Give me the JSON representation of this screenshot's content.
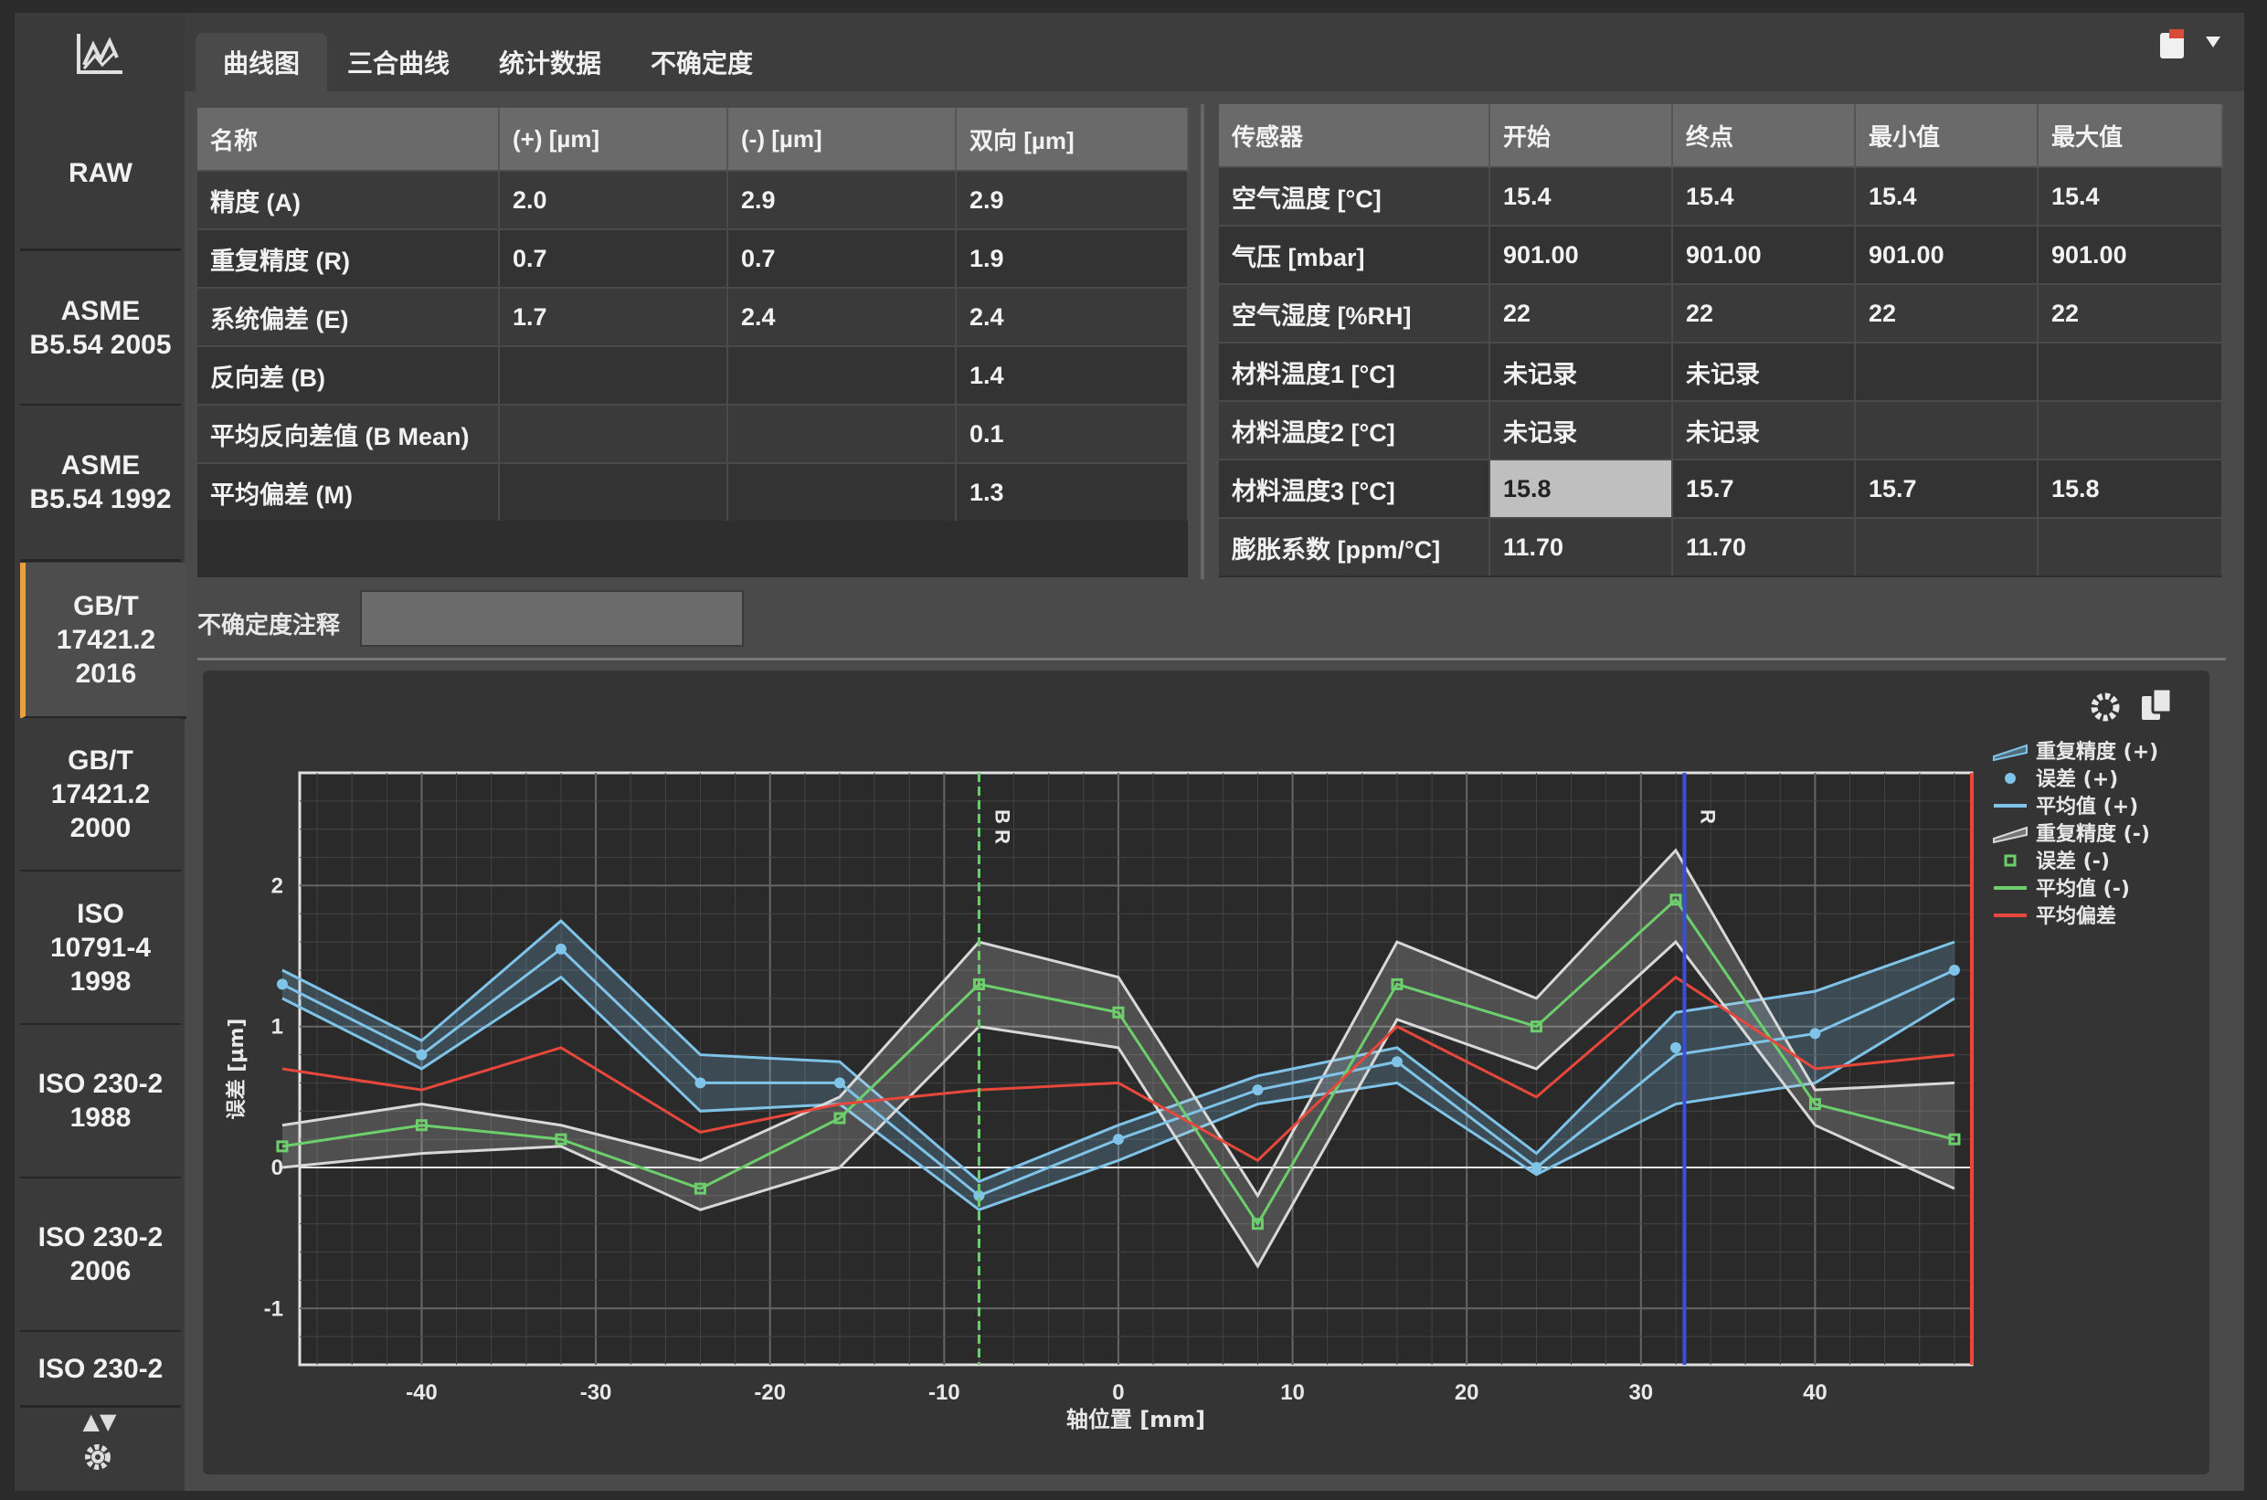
{
  "tabs": [
    {
      "label": "曲线图",
      "active": true
    },
    {
      "label": "三合曲线",
      "active": false
    },
    {
      "label": "统计数据",
      "active": false
    },
    {
      "label": "不确定度",
      "active": false
    }
  ],
  "sidebar": {
    "standards": [
      {
        "label": "RAW",
        "active": false
      },
      {
        "label": "ASME\nB5.54 2005",
        "active": false
      },
      {
        "label": "ASME\nB5.54 1992",
        "active": false
      },
      {
        "label": "GB/T\n17421.2\n2016",
        "active": true
      },
      {
        "label": "GB/T\n17421.2\n2000",
        "active": false
      },
      {
        "label": "ISO\n10791-4\n1998",
        "active": false
      },
      {
        "label": "ISO 230-2\n1988",
        "active": false
      },
      {
        "label": "ISO 230-2\n2006",
        "active": false
      },
      {
        "label": "ISO 230-2",
        "active": false
      }
    ],
    "scroll_arrows": "▲▼"
  },
  "results_table": {
    "headers": [
      "名称",
      "(+) [µm]",
      "(-) [µm]",
      "双向 [µm]"
    ],
    "rows": [
      [
        "精度 (A)",
        "2.0",
        "2.9",
        "2.9"
      ],
      [
        "重复精度 (R)",
        "0.7",
        "0.7",
        "1.9"
      ],
      [
        "系统偏差 (E)",
        "1.7",
        "2.4",
        "2.4"
      ],
      [
        "反向差 (B)",
        "",
        "",
        "1.4"
      ],
      [
        "平均反向差值 (B Mean)",
        "",
        "",
        "0.1"
      ],
      [
        "平均偏差 (M)",
        "",
        "",
        "1.3"
      ]
    ]
  },
  "sensor_table": {
    "headers": [
      "传感器",
      "开始",
      "终点",
      "最小值",
      "最大值"
    ],
    "rows": [
      [
        "空气温度 [°C]",
        "15.4",
        "15.4",
        "15.4",
        "15.4"
      ],
      [
        "气压 [mbar]",
        "901.00",
        "901.00",
        "901.00",
        "901.00"
      ],
      [
        "空气湿度 [%RH]",
        "22",
        "22",
        "22",
        "22"
      ],
      [
        "材料温度1 [°C]",
        "未记录",
        "未记录",
        "",
        ""
      ],
      [
        "材料温度2 [°C]",
        "未记录",
        "未记录",
        "",
        ""
      ],
      [
        "材料温度3 [°C]",
        "15.8",
        "15.7",
        "15.7",
        "15.8"
      ],
      [
        "膨胀系数 [ppm/°C]",
        "11.70",
        "11.70",
        "",
        ""
      ]
    ],
    "selected_cell": "15.8"
  },
  "uncertainty_note": {
    "label": "不确定度注释",
    "value": ""
  },
  "chart_data": {
    "type": "line",
    "xlabel": "轴位置 [mm]",
    "ylabel": "误差 [µm]",
    "xlim": [
      -47,
      49
    ],
    "ylim": [
      -1.4,
      2.8
    ],
    "xticks": [
      -40,
      -30,
      -20,
      -10,
      0,
      10,
      20,
      30,
      40
    ],
    "yticks": [
      -1,
      0,
      1,
      2
    ],
    "x": [
      -48,
      -40,
      -32,
      -24,
      -16,
      -8,
      0,
      8,
      16,
      24,
      32,
      40,
      48
    ],
    "series": [
      {
        "name": "重复精度 (+)",
        "kind": "band",
        "color": "#7fc3e8",
        "upper": [
          1.4,
          0.9,
          1.75,
          0.8,
          0.75,
          -0.1,
          0.3,
          0.65,
          0.85,
          0.1,
          1.1,
          1.25,
          1.6
        ],
        "lower": [
          1.2,
          0.7,
          1.35,
          0.4,
          0.45,
          -0.3,
          0.05,
          0.45,
          0.6,
          -0.05,
          0.45,
          0.6,
          1.2
        ]
      },
      {
        "name": "误差 (+)",
        "kind": "points",
        "color": "#7fc3e8",
        "values": [
          1.3,
          0.8,
          1.55,
          0.6,
          0.6,
          -0.2,
          0.2,
          0.55,
          0.75,
          0.0,
          0.85,
          0.95,
          1.4
        ]
      },
      {
        "name": "平均值 (+)",
        "kind": "line",
        "color": "#7fc3e8",
        "values": [
          1.3,
          0.8,
          1.55,
          0.6,
          0.6,
          -0.2,
          0.2,
          0.55,
          0.75,
          0.0,
          0.8,
          0.95,
          1.4
        ]
      },
      {
        "name": "重复精度 (-)",
        "kind": "band",
        "color": "#d8d8d8",
        "upper": [
          0.3,
          0.45,
          0.3,
          0.05,
          0.5,
          1.6,
          1.35,
          -0.2,
          1.6,
          1.2,
          2.25,
          0.55,
          0.6
        ],
        "lower": [
          0.0,
          0.1,
          0.15,
          -0.3,
          0.0,
          1.0,
          0.85,
          -0.7,
          1.05,
          0.7,
          1.6,
          0.3,
          -0.15
        ]
      },
      {
        "name": "误差 (-)",
        "kind": "points",
        "color": "#6ccf6c",
        "values": [
          0.15,
          0.3,
          0.2,
          -0.15,
          0.35,
          1.3,
          1.1,
          -0.4,
          1.3,
          1.0,
          1.9,
          0.45,
          0.2
        ]
      },
      {
        "name": "平均值 (-)",
        "kind": "line",
        "color": "#6ccf6c",
        "values": [
          0.15,
          0.3,
          0.2,
          -0.15,
          0.35,
          1.3,
          1.1,
          -0.4,
          1.3,
          1.0,
          1.9,
          0.45,
          0.2
        ]
      },
      {
        "name": "平均偏差",
        "kind": "line",
        "color": "#e8483c",
        "values": [
          0.7,
          0.55,
          0.85,
          0.25,
          0.45,
          0.55,
          0.6,
          0.05,
          1.0,
          0.5,
          1.35,
          0.7,
          0.8
        ]
      }
    ],
    "markers": [
      {
        "x": -8,
        "label": "B R",
        "color": "#6ccf6c",
        "style": "dashed"
      },
      {
        "x": 32.5,
        "label": "R",
        "color": "#3a4fd8",
        "style": "solid"
      }
    ],
    "grid": true,
    "legend": "right"
  },
  "colors": {
    "accent": "#e8a23a",
    "panel": "#343434",
    "header": "#6a6a6a"
  },
  "icons": {
    "logo": "chart-logo-icon",
    "settings": "gear-icon",
    "copy": "copy-icon",
    "export": "export-icon",
    "dropdown": "dropdown-icon"
  }
}
